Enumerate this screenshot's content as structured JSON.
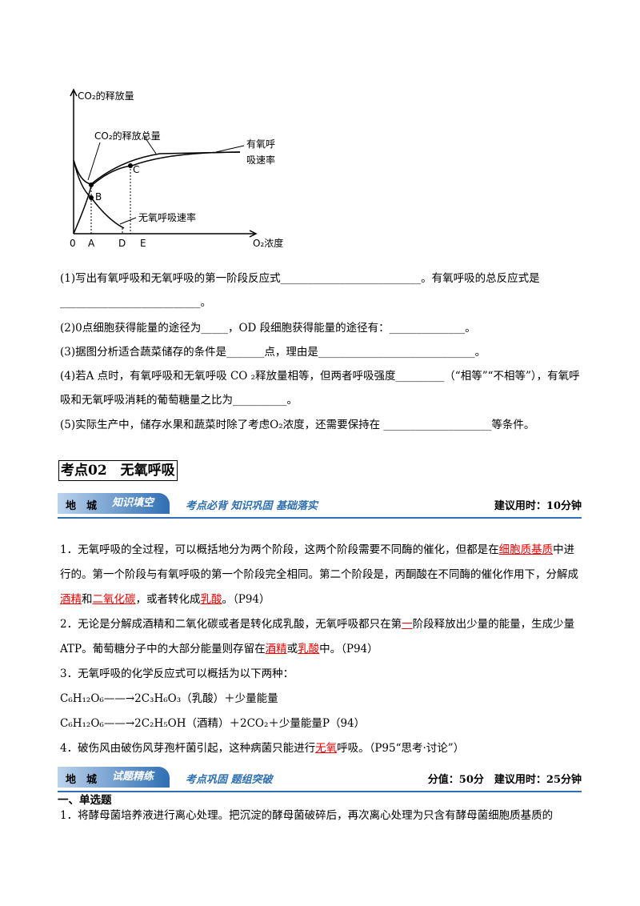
{
  "figure": {
    "y_axis_label": "CO₂的释放量",
    "total_label": "CO₂的释放总量",
    "aerobic_label": [
      "有氧呼",
      "吸速率"
    ],
    "anaerobic_label": "无氧呼吸速率",
    "x_axis_label": "O₂浓度",
    "points": [
      "0",
      "A",
      "B",
      "C",
      "D",
      "E"
    ]
  },
  "questions": [
    "(1)写出有氧呼吸和无氧呼吸的第一阶段反应式__________________________。有氧呼吸的总反应式是__________________________。",
    "(2)0点细胞获得能量的途径为_____，OD 段细胞获得能量的途径有：______________。",
    "(3)据图分析适合蔬菜储存的条件是_______点，理由是_____________________________。",
    "(4)若A 点时，有氧呼吸和无氧呼吸 CO ₂释放量相等，但两者呼吸强度_________（“相等”“不相等”），有氧呼吸和无氧呼吸消耗的葡萄糖量之比为__________。",
    "(5)实际生产中，储存水果和蔬菜时除了考虑O₂浓度，还需要保持在 ____________________等条件。"
  ],
  "section": {
    "title": "考点02　无氧呼吸",
    "banner1": {
      "icon": [
        "地",
        "城"
      ],
      "tab": "知识填空",
      "slogan": "考点必背  知识巩固  基础落实",
      "time": "建议用时：10分钟"
    },
    "items": [
      [
        {
          "text": "1．无氧呼吸的全过程，可以概括地分为两个阶段，这两个阶段需要不同酶的催化，但都是在"
        },
        {
          "text": "细胞质基质",
          "style": "answer"
        },
        {
          "text": "中进行的。第一个阶段与有氧呼吸的第一个阶段完全相同。第二个阶段是，丙酮酸在不同酶的催化作用下，分解成"
        },
        {
          "text": "酒精",
          "style": "answer"
        },
        {
          "text": "和"
        },
        {
          "text": "二氧化碳",
          "style": "answer"
        },
        {
          "text": "，或者转化成"
        },
        {
          "text": "乳酸",
          "style": "answer"
        },
        {
          "text": "。（P94）"
        }
      ],
      [
        {
          "text": "2．无论是分解成酒精和二氧化碳或者是转化成乳酸，无氧呼吸都只在第"
        },
        {
          "text": "一",
          "style": "answer"
        },
        {
          "text": "阶段释放出少量的能量，生成少量ATP。葡萄糖分子中的大部分能量则存留在"
        },
        {
          "text": "酒精",
          "style": "answer"
        },
        {
          "text": "或"
        },
        {
          "text": "乳酸",
          "style": "answer"
        },
        {
          "text": "中。（P94）"
        }
      ],
      [
        {
          "text": "3．无氧呼吸的化学反应式可以概括为以下两种："
        }
      ],
      [
        {
          "text": "C₆H₁₂O₆——→2C₃H₆O₃（乳酸）＋少量能量"
        }
      ],
      [
        {
          "text": "C₆H₁₂O₆——→2C₂H₅OH（酒精）＋2CO₂＋少量能量P（94）"
        }
      ],
      [
        {
          "text": "4．破伤风由破伤风芽孢杆菌引起，这种病菌只能进行"
        },
        {
          "text": "无氧",
          "style": "answer"
        },
        {
          "text": "呼吸。（P95“思考·讨论”）"
        }
      ]
    ],
    "banner2": {
      "icon": [
        "地",
        "城"
      ],
      "tab": "试题精练",
      "slogan": "考点巩固  题组突破",
      "score": "分值：50分",
      "time": "建议用时：25分钟"
    },
    "subheading": "一、单选题",
    "last_line": "1．将酵母菌培养液进行离心处理。把沉淀的酵母菌破碎后，再次离心处理为只含有酵母菌细胞质基质的"
  }
}
